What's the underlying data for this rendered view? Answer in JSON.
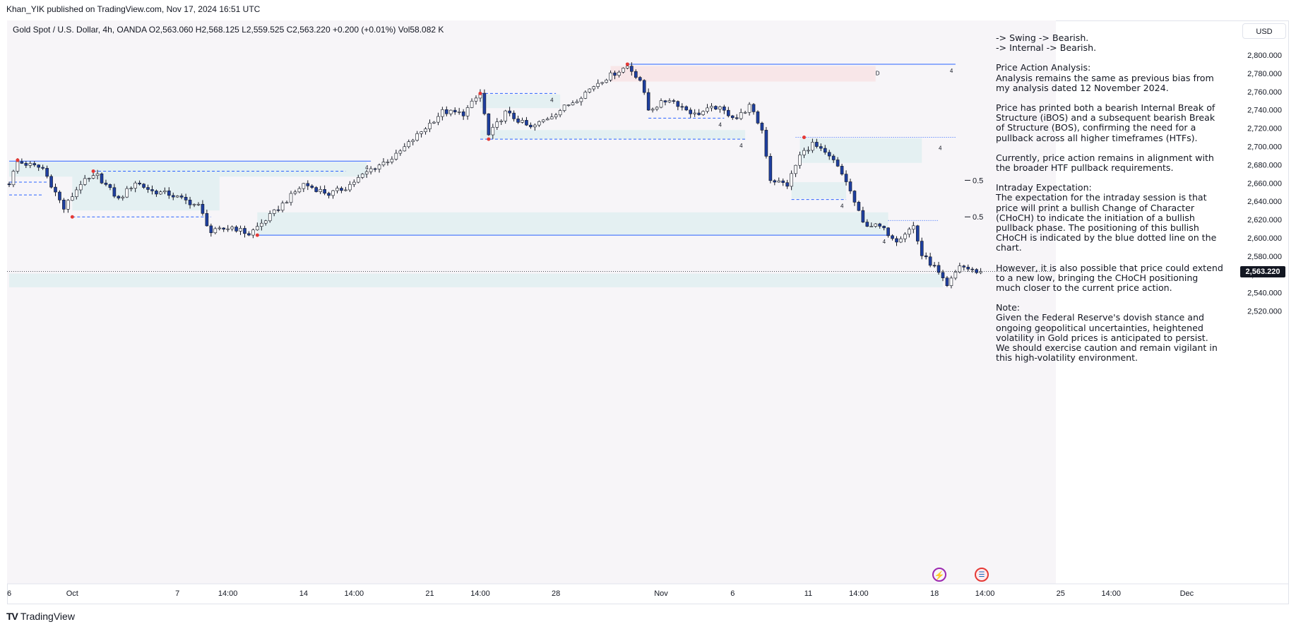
{
  "header": {
    "published": "Khan_YIK published on TradingView.com, Nov 17, 2024 16:51 UTC"
  },
  "symbol_line": "Gold Spot / U.S. Dollar, 4h, OANDA  O2,563.060  H2,568.125  L2,559.525  C2,563.220  +0.200 (+0.01%)  Vol58.082 K",
  "currency": "USD",
  "current_price": "2,563.220",
  "footer": {
    "logo_mark": "TV",
    "logo_text": "TradingView"
  },
  "icons": {
    "event": "lightning-icon",
    "flag": "us-flag-icon"
  },
  "colors": {
    "bull": "#ffffff",
    "bear": "#1e3fa0",
    "wick": "#131722",
    "zone": "#e4f0f2",
    "supply_zone": "#f8e6e8",
    "bos_line": "#2962ff",
    "swing_dot": "#e53935",
    "background": "#f7f5f8"
  },
  "analysis": [
    {
      "lines": [
        "-> Swing ->  Bearish.",
        "-> Internal ->  Bearish."
      ]
    },
    {
      "lines": [
        "Price Action Analysis:",
        "Analysis remains the same as previous bias from my analysis dated 12 November 2024."
      ]
    },
    {
      "lines": [
        "Price has printed both a bearish Internal Break of Structure (iBOS) and a subsequent bearish Break of Structure (BOS), confirming the need for a pullback across all higher timeframes (HTFs)."
      ]
    },
    {
      "lines": [
        "Currently, price action remains in alignment with the broader HTF pullback requirements."
      ]
    },
    {
      "lines": [
        "Intraday Expectation:",
        "The expectation for the intraday session is that price will print a bullish Change of Character (CHoCH) to indicate the initiation of a bullish pullback phase. The positioning of this bullish CHoCH is indicated by the blue dotted line on the chart."
      ]
    },
    {
      "lines": [
        "However, it is also possible that price could extend to a new low, bringing the CHoCH positioning much closer to the current price action."
      ]
    },
    {
      "lines": [
        "Note:",
        "Given the Federal Reserve's dovish stance and ongoing geopolitical uncertainties, heightened volatility in Gold prices is anticipated to persist.  We should exercise caution and remain vigilant in this high-volatility environment."
      ]
    }
  ],
  "chart_data": {
    "type": "candlestick",
    "title": "Gold Spot / U.S. Dollar, 4h, OANDA",
    "timeframe": "4h",
    "y_axis": {
      "ticks": [
        "2,800.000",
        "2,780.000",
        "2,760.000",
        "2,740.000",
        "2,720.000",
        "2,700.000",
        "2,680.000",
        "2,660.000",
        "2,640.000",
        "2,620.000",
        "2,600.000",
        "2,580.000",
        "2,560.000",
        "2,540.000",
        "2,520.000"
      ],
      "range": [
        2512,
        2808
      ]
    },
    "x_axis": {
      "ticks": [
        {
          "label": "6",
          "bar": 0
        },
        {
          "label": "Oct",
          "bar": 15
        },
        {
          "label": "7",
          "bar": 40
        },
        {
          "label": "14:00",
          "bar": 52
        },
        {
          "label": "14",
          "bar": 70
        },
        {
          "label": "14:00",
          "bar": 82
        },
        {
          "label": "21",
          "bar": 100
        },
        {
          "label": "14:00",
          "bar": 112
        },
        {
          "label": "28",
          "bar": 130
        },
        {
          "label": "Nov",
          "bar": 155
        },
        {
          "label": "6",
          "bar": 172
        },
        {
          "label": "11",
          "bar": 190
        },
        {
          "label": "14:00",
          "bar": 202
        },
        {
          "label": "18",
          "bar": 220
        },
        {
          "label": "14:00",
          "bar": 232
        },
        {
          "label": "25",
          "bar": 250
        },
        {
          "label": "14:00",
          "bar": 262
        },
        {
          "label": "Dec",
          "bar": 280
        }
      ]
    },
    "anchors": [
      {
        "bar": 0,
        "price": 2660
      },
      {
        "bar": 2,
        "price": 2683
      },
      {
        "bar": 8,
        "price": 2676
      },
      {
        "bar": 13,
        "price": 2632
      },
      {
        "bar": 17,
        "price": 2660
      },
      {
        "bar": 21,
        "price": 2668
      },
      {
        "bar": 26,
        "price": 2642
      },
      {
        "bar": 30,
        "price": 2661
      },
      {
        "bar": 34,
        "price": 2651
      },
      {
        "bar": 38,
        "price": 2648
      },
      {
        "bar": 45,
        "price": 2635
      },
      {
        "bar": 48,
        "price": 2606
      },
      {
        "bar": 53,
        "price": 2612
      },
      {
        "bar": 57,
        "price": 2604
      },
      {
        "bar": 63,
        "price": 2628
      },
      {
        "bar": 70,
        "price": 2659
      },
      {
        "bar": 76,
        "price": 2648
      },
      {
        "bar": 80,
        "price": 2655
      },
      {
        "bar": 86,
        "price": 2675
      },
      {
        "bar": 92,
        "price": 2690
      },
      {
        "bar": 97,
        "price": 2712
      },
      {
        "bar": 103,
        "price": 2738
      },
      {
        "bar": 108,
        "price": 2736
      },
      {
        "bar": 112,
        "price": 2758
      },
      {
        "bar": 114,
        "price": 2712
      },
      {
        "bar": 118,
        "price": 2737
      },
      {
        "bar": 124,
        "price": 2720
      },
      {
        "bar": 130,
        "price": 2737
      },
      {
        "bar": 135,
        "price": 2752
      },
      {
        "bar": 140,
        "price": 2770
      },
      {
        "bar": 145,
        "price": 2783
      },
      {
        "bar": 147,
        "price": 2788
      },
      {
        "bar": 150,
        "price": 2773
      },
      {
        "bar": 152,
        "price": 2740
      },
      {
        "bar": 157,
        "price": 2752
      },
      {
        "bar": 163,
        "price": 2735
      },
      {
        "bar": 168,
        "price": 2743
      },
      {
        "bar": 173,
        "price": 2731
      },
      {
        "bar": 176,
        "price": 2744
      },
      {
        "bar": 179,
        "price": 2718
      },
      {
        "bar": 181,
        "price": 2664
      },
      {
        "bar": 185,
        "price": 2658
      },
      {
        "bar": 188,
        "price": 2690
      },
      {
        "bar": 191,
        "price": 2703
      },
      {
        "bar": 196,
        "price": 2684
      },
      {
        "bar": 199,
        "price": 2662
      },
      {
        "bar": 203,
        "price": 2616
      },
      {
        "bar": 207,
        "price": 2612
      },
      {
        "bar": 211,
        "price": 2598
      },
      {
        "bar": 215,
        "price": 2613
      },
      {
        "bar": 217,
        "price": 2581
      },
      {
        "bar": 220,
        "price": 2568
      },
      {
        "bar": 223,
        "price": 2546
      },
      {
        "bar": 226,
        "price": 2570
      },
      {
        "bar": 229,
        "price": 2564
      },
      {
        "bar": 231,
        "price": 2563.22
      }
    ],
    "zones": [
      {
        "type": "demand",
        "x": [
          0,
          85
        ],
        "y": [
          2667,
          2683
        ]
      },
      {
        "type": "demand",
        "x": [
          15,
          50
        ],
        "y": [
          2630,
          2672
        ]
      },
      {
        "type": "demand",
        "x": [
          59,
          209
        ],
        "y": [
          2603,
          2628
        ]
      },
      {
        "type": "demand",
        "x": [
          112,
          131
        ],
        "y": [
          2742,
          2757
        ]
      },
      {
        "type": "demand",
        "x": [
          112,
          175
        ],
        "y": [
          2708,
          2718
        ]
      },
      {
        "type": "demand",
        "x": [
          186,
          199
        ],
        "y": [
          2643,
          2661
        ]
      },
      {
        "type": "demand",
        "x": [
          188,
          217
        ],
        "y": [
          2682,
          2709
        ]
      },
      {
        "type": "demand",
        "x": [
          0,
          222
        ],
        "y": [
          2546,
          2561
        ]
      },
      {
        "type": "supply",
        "x": [
          143,
          206
        ],
        "y": [
          2771,
          2788
        ]
      }
    ],
    "lines": [
      {
        "style": "solid",
        "x": [
          0,
          86
        ],
        "y": 2684,
        "label": "4"
      },
      {
        "style": "dashed",
        "x": [
          20,
          80
        ],
        "y": 2673,
        "label": ""
      },
      {
        "style": "dashed",
        "x": [
          0,
          9
        ],
        "y": 2661,
        "label": ""
      },
      {
        "style": "dashed",
        "x": [
          0,
          8
        ],
        "y": 2647,
        "label": ""
      },
      {
        "style": "dashed",
        "x": [
          15,
          48
        ],
        "y": 2623,
        "label": ""
      },
      {
        "style": "dashed",
        "x": [
          112,
          130
        ],
        "y": 2758,
        "label": "4"
      },
      {
        "style": "dashed",
        "x": [
          112,
          175
        ],
        "y": 2708,
        "label": "4"
      },
      {
        "style": "dashed",
        "x": [
          152,
          170
        ],
        "y": 2731,
        "label": "4"
      },
      {
        "style": "dashed",
        "x": [
          186,
          199
        ],
        "y": 2642,
        "label": "4"
      },
      {
        "style": "solid",
        "x": [
          59,
          209
        ],
        "y": 2603,
        "label": "4"
      },
      {
        "style": "solid",
        "x": [
          147,
          225
        ],
        "y": 2790,
        "label": "4"
      },
      {
        "style": "dotted",
        "x": [
          187,
          225
        ],
        "y": 2710,
        "label": ""
      },
      {
        "style": "dotted",
        "x": [
          209,
          221
        ],
        "y": 2619,
        "label": ""
      }
    ],
    "zone_labels": [
      {
        "text": "D",
        "bar": 206,
        "price": 2778
      },
      {
        "text": "4",
        "bar": 221,
        "price": 2696
      }
    ],
    "fib_labels": [
      {
        "text": "0.5",
        "price": 2663
      },
      {
        "text": "0.5",
        "price": 2623
      }
    ],
    "swing_points": [
      {
        "bar": 2,
        "price": 2685
      },
      {
        "bar": 20,
        "price": 2673
      },
      {
        "bar": 15,
        "price": 2623
      },
      {
        "bar": 59,
        "price": 2603
      },
      {
        "bar": 112,
        "price": 2758
      },
      {
        "bar": 114,
        "price": 2708
      },
      {
        "bar": 147,
        "price": 2790
      },
      {
        "bar": 189,
        "price": 2710
      }
    ]
  }
}
